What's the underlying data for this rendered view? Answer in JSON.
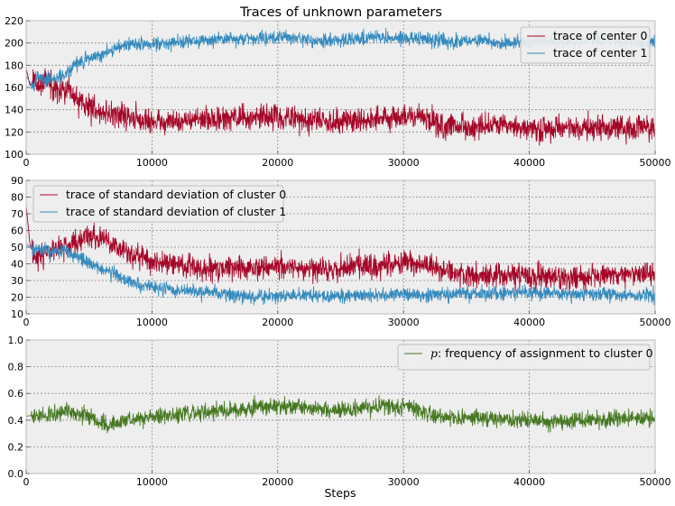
{
  "figure_title": "Traces of unknown parameters",
  "colors": {
    "panel_bg": "#eeeeee",
    "series_red": "#a60628",
    "series_blue": "#348abd",
    "series_green": "#467821"
  },
  "chart_data": [
    {
      "type": "line",
      "title": "Traces of unknown parameters",
      "xlabel": "",
      "ylabel": "",
      "xlim": [
        0,
        50000
      ],
      "ylim": [
        100,
        220
      ],
      "xticks": [
        0,
        10000,
        20000,
        30000,
        40000,
        50000
      ],
      "yticks": [
        100,
        120,
        140,
        160,
        180,
        200,
        220
      ],
      "grid": true,
      "legend_position": "top-right",
      "series": [
        {
          "name": "trace of center 0",
          "color": "#a60628",
          "noise": 5.5,
          "x": [
            0,
            300,
            600,
            900,
            1500,
            2500,
            3000,
            4000,
            5000,
            6000,
            7000,
            8000,
            9000,
            10000,
            12000,
            14000,
            16000,
            18000,
            20000,
            22000,
            24000,
            26000,
            28000,
            30000,
            31500,
            33000,
            35000,
            37000,
            39000,
            41000,
            43000,
            45000,
            47000,
            49000,
            50000
          ],
          "y": [
            177,
            162,
            166,
            162,
            168,
            158,
            157,
            150,
            143,
            138,
            136,
            134,
            130,
            129,
            130,
            131,
            132,
            133,
            133,
            132,
            130,
            131,
            132,
            134,
            133,
            126,
            124,
            125,
            124,
            121,
            124,
            123,
            124,
            124,
            125
          ]
        },
        {
          "name": "trace of center 1",
          "color": "#348abd",
          "noise": 3.0,
          "x": [
            0,
            300,
            600,
            900,
            1500,
            2500,
            3000,
            4000,
            5000,
            6000,
            7000,
            8000,
            9000,
            10000,
            12000,
            14000,
            16000,
            18000,
            20000,
            22000,
            24000,
            26000,
            28000,
            30000,
            32000,
            34000,
            36000,
            38000,
            40000,
            42000,
            44000,
            46000,
            48000,
            50000
          ],
          "y": [
            170,
            165,
            160,
            172,
            166,
            169,
            170,
            182,
            186,
            190,
            195,
            198,
            200,
            198,
            201,
            202,
            204,
            204,
            205,
            203,
            202,
            204,
            205,
            204,
            203,
            201,
            202,
            200,
            202,
            201,
            202,
            202,
            201,
            201
          ]
        }
      ]
    },
    {
      "type": "line",
      "title": "",
      "xlabel": "",
      "ylabel": "",
      "xlim": [
        0,
        50000
      ],
      "ylim": [
        10,
        90
      ],
      "xticks": [
        0,
        10000,
        20000,
        30000,
        40000,
        50000
      ],
      "yticks": [
        10,
        20,
        30,
        40,
        50,
        60,
        70,
        80,
        90
      ],
      "grid": true,
      "legend_position": "top-left",
      "series": [
        {
          "name": "trace of standard deviation of cluster 0",
          "color": "#a60628",
          "noise": 3.5,
          "x": [
            0,
            300,
            600,
            1200,
            2000,
            3000,
            4000,
            5000,
            6000,
            7000,
            8000,
            9000,
            10000,
            12000,
            14000,
            16000,
            18000,
            20000,
            22000,
            24000,
            26000,
            28000,
            30000,
            31500,
            33000,
            35000,
            37000,
            39000,
            41000,
            43000,
            45000,
            47000,
            49000,
            50000
          ],
          "y": [
            75,
            52,
            44,
            46,
            48,
            50,
            53,
            56,
            55,
            51,
            47,
            44,
            41,
            40,
            37,
            38,
            38,
            38,
            37,
            36,
            39,
            39,
            41,
            40,
            36,
            33,
            33,
            33,
            32,
            32,
            33,
            33,
            34,
            34
          ]
        },
        {
          "name": "trace of standard deviation of cluster 1",
          "color": "#348abd",
          "noise": 2.0,
          "x": [
            0,
            300,
            600,
            1200,
            2000,
            3000,
            4000,
            5000,
            6000,
            7000,
            8000,
            9000,
            10000,
            12000,
            14000,
            16000,
            18000,
            20000,
            22000,
            24000,
            26000,
            28000,
            30000,
            32000,
            34000,
            36000,
            38000,
            40000,
            42000,
            44000,
            46000,
            48000,
            50000
          ],
          "y": [
            52,
            50,
            48,
            49,
            47,
            48,
            45,
            40,
            37,
            34,
            30,
            27,
            26,
            24,
            23,
            22,
            20,
            21,
            21,
            21,
            21,
            21,
            22,
            21,
            22,
            22,
            22,
            23,
            22,
            22,
            22,
            21,
            21
          ]
        }
      ]
    },
    {
      "type": "line",
      "title": "",
      "xlabel": "Steps",
      "ylabel": "",
      "xlim": [
        0,
        50000
      ],
      "ylim": [
        0.0,
        1.0
      ],
      "xticks": [
        0,
        10000,
        20000,
        30000,
        40000,
        50000
      ],
      "yticks": [
        0.0,
        0.2,
        0.4,
        0.6,
        0.8,
        1.0
      ],
      "grid": true,
      "legend_position": "top-right",
      "series": [
        {
          "name_prefix": "p",
          "name": ": frequency of assignment to cluster 0",
          "color": "#467821",
          "noise": 0.03,
          "x": [
            0,
            1000,
            2000,
            3000,
            4000,
            5000,
            6000,
            6500,
            7000,
            8000,
            9000,
            10000,
            12000,
            14000,
            16000,
            18000,
            20000,
            22000,
            24000,
            26000,
            28000,
            30000,
            31000,
            32000,
            33000,
            34000,
            36000,
            38000,
            40000,
            42000,
            44000,
            46000,
            48000,
            50000
          ],
          "y": [
            0.43,
            0.44,
            0.45,
            0.47,
            0.45,
            0.42,
            0.38,
            0.36,
            0.38,
            0.4,
            0.41,
            0.42,
            0.44,
            0.46,
            0.47,
            0.49,
            0.51,
            0.5,
            0.48,
            0.48,
            0.5,
            0.5,
            0.48,
            0.45,
            0.43,
            0.42,
            0.41,
            0.4,
            0.4,
            0.39,
            0.4,
            0.41,
            0.42,
            0.42
          ]
        }
      ]
    }
  ]
}
